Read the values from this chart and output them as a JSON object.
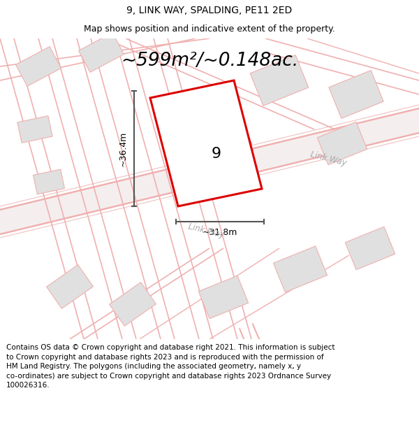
{
  "title_line1": "9, LINK WAY, SPALDING, PE11 2ED",
  "title_line2": "Map shows position and indicative extent of the property.",
  "area_text": "~599m²/~0.148ac.",
  "property_number": "9",
  "dim_width": "~31.8m",
  "dim_height": "~36.4m",
  "road_label1": "Link Way",
  "road_label2": "Link Way",
  "footer_lines": [
    "Contains OS data © Crown copyright and database right 2021. This information is subject",
    "to Crown copyright and database rights 2023 and is reproduced with the permission of",
    "HM Land Registry. The polygons (including the associated geometry, namely x, y",
    "co-ordinates) are subject to Crown copyright and database rights 2023 Ordnance Survey",
    "100026316."
  ],
  "bg_color": "#f5f5f5",
  "map_bg_color": "#f8f8f8",
  "plot_fill": "#f0f0f0",
  "plot_border": "#dd0000",
  "road_line_color": "#f0b0b0",
  "road_outline_color": "#e8c8c8",
  "building_fill": "#e0e0e0",
  "building_border": "#f0b0b0",
  "dim_color": "#555555",
  "title_fontsize": 10,
  "subtitle_fontsize": 9,
  "area_fontsize": 19,
  "footer_fontsize": 7.5,
  "number_fontsize": 16
}
